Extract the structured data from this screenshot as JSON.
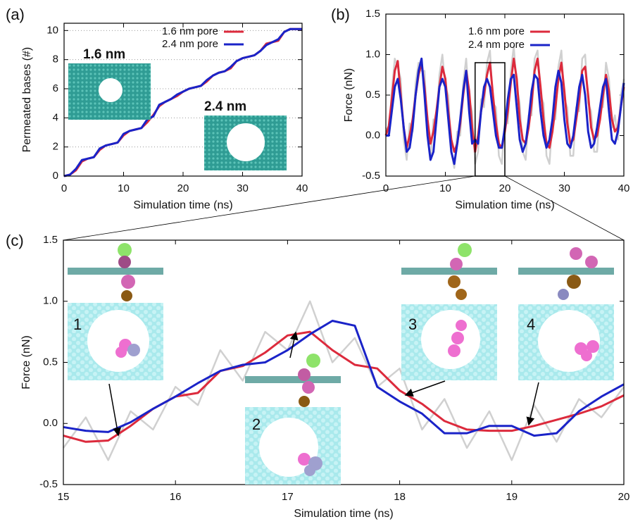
{
  "chart_data": [
    {
      "type": "line",
      "label": "(a)",
      "xlabel": "Simulation time (ns)",
      "ylabel": "Permeated bases (#)",
      "x": [
        0,
        1,
        2,
        3,
        4,
        5,
        6,
        7,
        8,
        9,
        10,
        11,
        12,
        13,
        14,
        15,
        16,
        17,
        18,
        19,
        20,
        21,
        22,
        23,
        24,
        25,
        26,
        27,
        28,
        29,
        30,
        31,
        32,
        33,
        34,
        35,
        36,
        37,
        38,
        39,
        40
      ],
      "series": [
        {
          "name": "1.6 nm pore",
          "color": "#dc2a3c",
          "values": [
            0,
            0.1,
            0.4,
            1.0,
            1.2,
            1.3,
            1.8,
            2.1,
            2.2,
            2.3,
            2.8,
            3.1,
            3.2,
            3.3,
            3.7,
            4.2,
            4.8,
            5.1,
            5.3,
            5.5,
            5.8,
            6.0,
            6.1,
            6.2,
            6.5,
            6.9,
            7.1,
            7.2,
            7.4,
            7.9,
            8.1,
            8.2,
            8.3,
            8.6,
            9.1,
            9.2,
            9.3,
            9.9,
            10.1,
            10.1,
            10.1
          ]
        },
        {
          "name": "2.4 nm pore",
          "color": "#1a23c8",
          "values": [
            0,
            0.1,
            0.5,
            1.1,
            1.2,
            1.3,
            1.9,
            2.1,
            2.2,
            2.3,
            2.9,
            3.1,
            3.2,
            3.3,
            3.9,
            4.1,
            4.9,
            5.1,
            5.3,
            5.6,
            5.8,
            6.0,
            6.1,
            6.2,
            6.6,
            6.9,
            7.1,
            7.2,
            7.5,
            7.9,
            8.1,
            8.2,
            8.3,
            8.6,
            9.0,
            9.2,
            9.4,
            9.9,
            10.1,
            10.1,
            10.1
          ]
        }
      ],
      "xlim": [
        0,
        40
      ],
      "xticks": [
        0,
        10,
        20,
        30,
        40
      ],
      "ylim": [
        0,
        10.5
      ],
      "yticks": [
        0,
        2,
        4,
        6,
        8,
        10
      ],
      "grid": true,
      "legend": "upper right",
      "annotations": [
        {
          "text": "1.6 nm",
          "color": "#dc2a3c"
        },
        {
          "text": "2.4 nm",
          "color": "#1a23c8"
        }
      ]
    },
    {
      "type": "line",
      "label": "(b)",
      "xlabel": "Simulation time (ns)",
      "ylabel": "Force (nN)",
      "x": [
        0,
        0.5,
        1,
        1.5,
        2,
        2.5,
        3,
        3.5,
        4,
        4.5,
        5,
        5.5,
        6,
        6.5,
        7,
        7.5,
        8,
        8.5,
        9,
        9.5,
        10,
        10.5,
        11,
        11.5,
        12,
        12.5,
        13,
        13.5,
        14,
        14.5,
        15,
        15.5,
        16,
        16.5,
        17,
        17.5,
        18,
        18.5,
        19,
        19.5,
        20,
        20.5,
        21,
        21.5,
        22,
        22.5,
        23,
        23.5,
        24,
        24.5,
        25,
        25.5,
        26,
        26.5,
        27,
        27.5,
        28,
        28.5,
        29,
        29.5,
        30,
        30.5,
        31,
        31.5,
        32,
        32.5,
        33,
        33.5,
        34,
        34.5,
        35,
        35.5,
        36,
        36.5,
        37,
        37.5,
        38,
        38.5,
        39,
        39.5,
        40
      ],
      "series": [
        {
          "color": "#d0d0d0",
          "values": [
            0.1,
            0.0,
            0.55,
            0.95,
            0.85,
            0.7,
            -0.05,
            -0.3,
            0.15,
            0.05,
            0.65,
            0.9,
            0.8,
            0.8,
            0.05,
            -0.3,
            0.2,
            0.15,
            0.75,
            1.0,
            0.6,
            0.5,
            -0.2,
            -0.4,
            0.05,
            0.0,
            0.65,
            0.95,
            0.45,
            0.3,
            -0.35,
            -0.2,
            0.45,
            0.35,
            0.9,
            1.05,
            0.4,
            0.35,
            -0.25,
            -0.35,
            0.2,
            0.15,
            0.8,
            1.1,
            0.6,
            0.4,
            -0.2,
            -0.3,
            0.25,
            0.25,
            0.95,
            1.05,
            0.5,
            0.4,
            -0.25,
            -0.35,
            0.2,
            0.2,
            0.85,
            1.05,
            0.45,
            0.35,
            -0.25,
            -0.25,
            0.35,
            0.3,
            0.95,
            1.0,
            0.4,
            0.3,
            -0.2,
            -0.2,
            0.35,
            0.35,
            0.9,
            0.7,
            0.1,
            0.25,
            -0.05,
            0.5,
            0.7
          ]
        },
        {
          "name": "1.6 nm pore",
          "color": "#dc2a3c",
          "values": [
            0.0,
            0.12,
            0.45,
            0.8,
            0.92,
            0.5,
            0.1,
            -0.15,
            0.0,
            0.2,
            0.5,
            0.75,
            0.9,
            0.6,
            0.2,
            -0.1,
            0.05,
            0.3,
            0.6,
            0.85,
            0.7,
            0.3,
            -0.05,
            -0.2,
            -0.1,
            0.15,
            0.5,
            0.8,
            0.55,
            0.1,
            -0.2,
            0.0,
            0.3,
            0.5,
            0.75,
            0.9,
            0.5,
            0.15,
            -0.1,
            -0.15,
            0.05,
            0.3,
            0.65,
            0.95,
            0.7,
            0.2,
            -0.05,
            -0.1,
            0.1,
            0.4,
            0.8,
            0.95,
            0.6,
            0.2,
            -0.1,
            -0.15,
            0.05,
            0.35,
            0.7,
            0.9,
            0.55,
            0.15,
            -0.1,
            -0.05,
            0.2,
            0.45,
            0.8,
            0.85,
            0.5,
            0.1,
            -0.05,
            0.0,
            0.2,
            0.5,
            0.75,
            0.55,
            0.2,
            0.05,
            0.1,
            0.35,
            0.6
          ]
        },
        {
          "name": "2.4 nm pore",
          "color": "#1a23c8",
          "values": [
            0.0,
            0.0,
            0.3,
            0.6,
            0.7,
            0.45,
            0.1,
            -0.2,
            -0.15,
            0.1,
            0.5,
            0.8,
            0.95,
            0.5,
            0.0,
            -0.3,
            -0.2,
            0.2,
            0.6,
            0.7,
            0.6,
            0.2,
            -0.2,
            -0.35,
            -0.1,
            0.2,
            0.55,
            0.8,
            0.3,
            -0.1,
            -0.05,
            -0.1,
            0.3,
            0.6,
            0.7,
            0.6,
            0.3,
            0.0,
            -0.15,
            -0.15,
            0.1,
            0.45,
            0.7,
            0.75,
            0.35,
            -0.05,
            -0.2,
            -0.1,
            0.2,
            0.55,
            0.75,
            0.7,
            0.3,
            0.0,
            -0.15,
            -0.05,
            0.2,
            0.6,
            0.8,
            0.65,
            0.2,
            -0.1,
            -0.15,
            0.0,
            0.3,
            0.6,
            0.75,
            0.5,
            0.05,
            -0.15,
            -0.1,
            0.1,
            0.35,
            0.6,
            0.7,
            0.3,
            -0.05,
            -0.1,
            0.05,
            0.35,
            0.65
          ]
        }
      ],
      "xlim": [
        0,
        40
      ],
      "xticks": [
        0,
        10,
        20,
        30,
        40
      ],
      "ylim": [
        -0.5,
        1.5
      ],
      "yticks": [
        -0.5,
        {
          "value": 0,
          "label": "0.0"
        },
        0.5,
        {
          "value": 1,
          "label": "1.0"
        },
        1.5
      ],
      "grid": false,
      "legend": "upper right",
      "highlight": {
        "xlim": [
          15,
          20
        ],
        "ylim": [
          -0.5,
          0.9
        ]
      }
    },
    {
      "type": "line",
      "label": "(c)",
      "xlabel": "Simulation time (ns)",
      "ylabel": "Force (nN)",
      "x": [
        15,
        15.2,
        15.4,
        15.6,
        15.8,
        16,
        16.2,
        16.4,
        16.6,
        16.8,
        17,
        17.2,
        17.4,
        17.6,
        17.8,
        18,
        18.2,
        18.4,
        18.6,
        18.8,
        19,
        19.2,
        19.4,
        19.6,
        19.8,
        20
      ],
      "series": [
        {
          "color": "#d0d0d0",
          "values": [
            -0.2,
            0.05,
            -0.3,
            0.1,
            -0.05,
            0.3,
            0.15,
            0.6,
            0.35,
            0.75,
            0.6,
            1.0,
            0.5,
            0.7,
            0.3,
            0.45,
            -0.05,
            0.2,
            -0.2,
            0.1,
            -0.3,
            0.15,
            -0.15,
            0.2,
            0.05,
            0.3
          ]
        },
        {
          "name": "1.6 nm pore",
          "color": "#dc2a3c",
          "values": [
            -0.1,
            -0.15,
            -0.14,
            -0.02,
            0.12,
            0.22,
            0.25,
            0.43,
            0.47,
            0.58,
            0.72,
            0.75,
            0.6,
            0.48,
            0.45,
            0.27,
            0.16,
            0.02,
            -0.05,
            -0.06,
            -0.06,
            -0.02,
            0.03,
            0.08,
            0.14,
            0.23
          ]
        },
        {
          "name": "2.4 nm pore",
          "color": "#1a23c8",
          "values": [
            -0.03,
            -0.06,
            -0.07,
            0.01,
            0.12,
            0.22,
            0.33,
            0.43,
            0.48,
            0.5,
            0.6,
            0.73,
            0.84,
            0.8,
            0.3,
            0.18,
            0.08,
            -0.08,
            -0.08,
            -0.02,
            -0.02,
            -0.1,
            -0.08,
            0.1,
            0.22,
            0.32
          ]
        }
      ],
      "xlim": [
        15,
        20
      ],
      "xticks": [
        15,
        16,
        17,
        18,
        19,
        20
      ],
      "ylim": [
        -0.5,
        1.5
      ],
      "yticks": [
        -0.5,
        {
          "value": 0,
          "label": "0.0"
        },
        0.5,
        {
          "value": 1,
          "label": "1.0"
        },
        1.5
      ],
      "grid": false,
      "annotations": [
        {
          "text": "1"
        },
        {
          "text": "2"
        },
        {
          "text": "3"
        },
        {
          "text": "4"
        }
      ]
    }
  ]
}
